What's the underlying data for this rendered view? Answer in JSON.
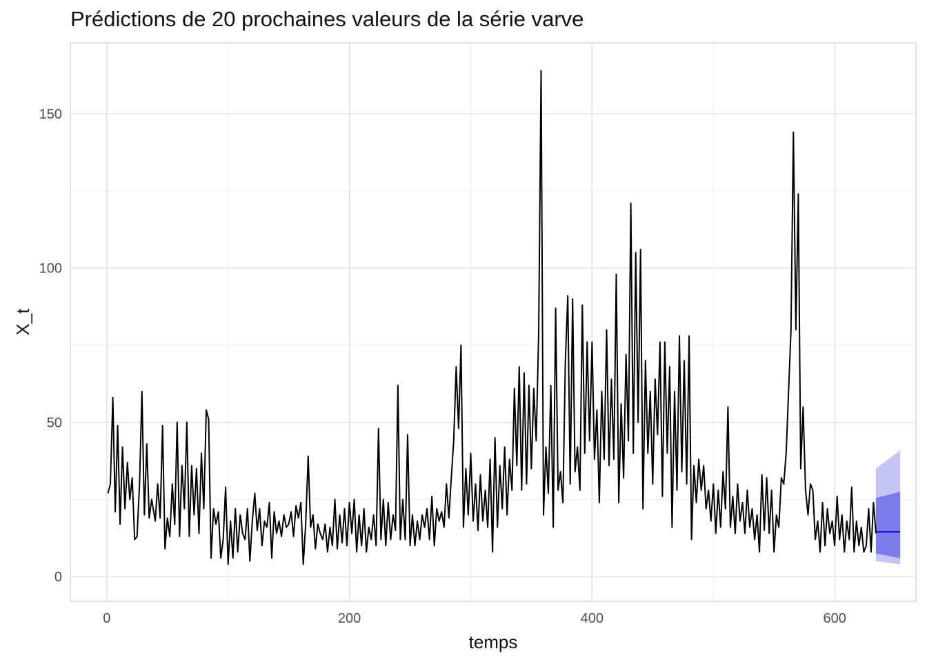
{
  "chart_data": {
    "type": "line",
    "title": "Prédictions de 20 prochaines valeurs de la série varve",
    "xlabel": "temps",
    "ylabel": "X_t",
    "xlim": [
      -30,
      667
    ],
    "ylim": [
      -8,
      173
    ],
    "x_ticks": [
      0,
      200,
      400,
      600
    ],
    "x_tick_labels": [
      "0",
      "200",
      "400",
      "600"
    ],
    "y_ticks": [
      0,
      50,
      100,
      150
    ],
    "y_tick_labels": [
      "0",
      "50",
      "100",
      "150"
    ],
    "grid": true,
    "series": [
      {
        "role": "observed",
        "color": "#000000",
        "points": [
          [
            1,
            27
          ],
          [
            3,
            30
          ],
          [
            5,
            58
          ],
          [
            7,
            21
          ],
          [
            9,
            49
          ],
          [
            11,
            17
          ],
          [
            13,
            42
          ],
          [
            15,
            22
          ],
          [
            17,
            37
          ],
          [
            19,
            25
          ],
          [
            21,
            32
          ],
          [
            23,
            12
          ],
          [
            25,
            13
          ],
          [
            27,
            30
          ],
          [
            29,
            60
          ],
          [
            31,
            20
          ],
          [
            33,
            43
          ],
          [
            35,
            19
          ],
          [
            37,
            25
          ],
          [
            40,
            18
          ],
          [
            42,
            30
          ],
          [
            44,
            19
          ],
          [
            46,
            49
          ],
          [
            48,
            9
          ],
          [
            50,
            19
          ],
          [
            52,
            13
          ],
          [
            54,
            30
          ],
          [
            56,
            17
          ],
          [
            58,
            50
          ],
          [
            60,
            13
          ],
          [
            62,
            36
          ],
          [
            64,
            22
          ],
          [
            66,
            50
          ],
          [
            68,
            13
          ],
          [
            70,
            36
          ],
          [
            72,
            20
          ],
          [
            74,
            35
          ],
          [
            76,
            14
          ],
          [
            78,
            40
          ],
          [
            80,
            22
          ],
          [
            82,
            54
          ],
          [
            84,
            51
          ],
          [
            86,
            6
          ],
          [
            88,
            22
          ],
          [
            90,
            17
          ],
          [
            92,
            21
          ],
          [
            94,
            6
          ],
          [
            96,
            12
          ],
          [
            98,
            29
          ],
          [
            100,
            4
          ],
          [
            102,
            18
          ],
          [
            104,
            6
          ],
          [
            106,
            22
          ],
          [
            108,
            8
          ],
          [
            110,
            20
          ],
          [
            112,
            14
          ],
          [
            114,
            12
          ],
          [
            116,
            22
          ],
          [
            118,
            5
          ],
          [
            120,
            18
          ],
          [
            122,
            27
          ],
          [
            124,
            15
          ],
          [
            126,
            22
          ],
          [
            128,
            10
          ],
          [
            130,
            18
          ],
          [
            132,
            16
          ],
          [
            134,
            24
          ],
          [
            136,
            6
          ],
          [
            138,
            21
          ],
          [
            140,
            14
          ],
          [
            142,
            18
          ],
          [
            144,
            13
          ],
          [
            146,
            20
          ],
          [
            148,
            16
          ],
          [
            150,
            17
          ],
          [
            152,
            21
          ],
          [
            154,
            13
          ],
          [
            156,
            23
          ],
          [
            158,
            19
          ],
          [
            160,
            24
          ],
          [
            162,
            4
          ],
          [
            164,
            17
          ],
          [
            166,
            39
          ],
          [
            168,
            16
          ],
          [
            170,
            20
          ],
          [
            172,
            9
          ],
          [
            174,
            17
          ],
          [
            176,
            14
          ],
          [
            178,
            12
          ],
          [
            180,
            17
          ],
          [
            182,
            8
          ],
          [
            184,
            16
          ],
          [
            186,
            10
          ],
          [
            188,
            25
          ],
          [
            190,
            9
          ],
          [
            192,
            20
          ],
          [
            194,
            11
          ],
          [
            196,
            22
          ],
          [
            198,
            10
          ],
          [
            200,
            24
          ],
          [
            202,
            14
          ],
          [
            204,
            25
          ],
          [
            206,
            8
          ],
          [
            208,
            20
          ],
          [
            210,
            10
          ],
          [
            212,
            22
          ],
          [
            214,
            8
          ],
          [
            216,
            16
          ],
          [
            218,
            12
          ],
          [
            220,
            20
          ],
          [
            222,
            10
          ],
          [
            224,
            48
          ],
          [
            226,
            12
          ],
          [
            228,
            25
          ],
          [
            230,
            10
          ],
          [
            232,
            24
          ],
          [
            234,
            12
          ],
          [
            236,
            20
          ],
          [
            238,
            15
          ],
          [
            240,
            62
          ],
          [
            242,
            12
          ],
          [
            244,
            25
          ],
          [
            246,
            12
          ],
          [
            248,
            46
          ],
          [
            250,
            10
          ],
          [
            252,
            20
          ],
          [
            254,
            10
          ],
          [
            256,
            18
          ],
          [
            258,
            12
          ],
          [
            260,
            20
          ],
          [
            262,
            16
          ],
          [
            264,
            22
          ],
          [
            266,
            12
          ],
          [
            268,
            26
          ],
          [
            270,
            10
          ],
          [
            272,
            22
          ],
          [
            274,
            18
          ],
          [
            276,
            21
          ],
          [
            278,
            16
          ],
          [
            280,
            30
          ],
          [
            282,
            19
          ],
          [
            284,
            32
          ],
          [
            286,
            44
          ],
          [
            288,
            68
          ],
          [
            290,
            48
          ],
          [
            292,
            75
          ],
          [
            294,
            16
          ],
          [
            296,
            35
          ],
          [
            298,
            20
          ],
          [
            300,
            40
          ],
          [
            302,
            18
          ],
          [
            304,
            30
          ],
          [
            306,
            15
          ],
          [
            308,
            33
          ],
          [
            310,
            18
          ],
          [
            312,
            28
          ],
          [
            314,
            16
          ],
          [
            316,
            38
          ],
          [
            318,
            8
          ],
          [
            320,
            45
          ],
          [
            322,
            16
          ],
          [
            324,
            36
          ],
          [
            326,
            22
          ],
          [
            328,
            42
          ],
          [
            330,
            20
          ],
          [
            332,
            38
          ],
          [
            334,
            28
          ],
          [
            336,
            61
          ],
          [
            338,
            36
          ],
          [
            340,
            68
          ],
          [
            342,
            28
          ],
          [
            344,
            66
          ],
          [
            346,
            30
          ],
          [
            348,
            62
          ],
          [
            350,
            35
          ],
          [
            352,
            61
          ],
          [
            354,
            44
          ],
          [
            356,
            79
          ],
          [
            358,
            164
          ],
          [
            360,
            20
          ],
          [
            362,
            42
          ],
          [
            364,
            27
          ],
          [
            366,
            62
          ],
          [
            368,
            16
          ],
          [
            370,
            87
          ],
          [
            372,
            28
          ],
          [
            374,
            34
          ],
          [
            376,
            24
          ],
          [
            378,
            70
          ],
          [
            380,
            91
          ],
          [
            382,
            30
          ],
          [
            384,
            90
          ],
          [
            386,
            34
          ],
          [
            388,
            42
          ],
          [
            390,
            28
          ],
          [
            392,
            88
          ],
          [
            394,
            40
          ],
          [
            396,
            76
          ],
          [
            398,
            44
          ],
          [
            400,
            76
          ],
          [
            402,
            38
          ],
          [
            404,
            54
          ],
          [
            406,
            24
          ],
          [
            408,
            60
          ],
          [
            410,
            38
          ],
          [
            412,
            80
          ],
          [
            414,
            36
          ],
          [
            416,
            64
          ],
          [
            418,
            38
          ],
          [
            420,
            98
          ],
          [
            422,
            24
          ],
          [
            424,
            56
          ],
          [
            426,
            32
          ],
          [
            428,
            72
          ],
          [
            430,
            44
          ],
          [
            432,
            121
          ],
          [
            434,
            40
          ],
          [
            436,
            105
          ],
          [
            438,
            50
          ],
          [
            440,
            106
          ],
          [
            442,
            22
          ],
          [
            444,
            70
          ],
          [
            446,
            40
          ],
          [
            448,
            60
          ],
          [
            450,
            30
          ],
          [
            452,
            64
          ],
          [
            454,
            46
          ],
          [
            456,
            76
          ],
          [
            458,
            26
          ],
          [
            460,
            76
          ],
          [
            462,
            40
          ],
          [
            464,
            68
          ],
          [
            466,
            16
          ],
          [
            468,
            60
          ],
          [
            470,
            28
          ],
          [
            472,
            78
          ],
          [
            474,
            34
          ],
          [
            476,
            70
          ],
          [
            478,
            30
          ],
          [
            480,
            78
          ],
          [
            482,
            12
          ],
          [
            484,
            36
          ],
          [
            486,
            24
          ],
          [
            488,
            38
          ],
          [
            490,
            28
          ],
          [
            492,
            36
          ],
          [
            494,
            22
          ],
          [
            496,
            28
          ],
          [
            498,
            18
          ],
          [
            500,
            30
          ],
          [
            502,
            14
          ],
          [
            504,
            28
          ],
          [
            506,
            16
          ],
          [
            508,
            34
          ],
          [
            510,
            22
          ],
          [
            512,
            55
          ],
          [
            514,
            16
          ],
          [
            516,
            26
          ],
          [
            518,
            14
          ],
          [
            520,
            30
          ],
          [
            522,
            18
          ],
          [
            524,
            24
          ],
          [
            526,
            14
          ],
          [
            528,
            28
          ],
          [
            530,
            16
          ],
          [
            532,
            22
          ],
          [
            534,
            12
          ],
          [
            536,
            20
          ],
          [
            538,
            8
          ],
          [
            540,
            33
          ],
          [
            542,
            15
          ],
          [
            544,
            32
          ],
          [
            546,
            14
          ],
          [
            548,
            28
          ],
          [
            550,
            8
          ],
          [
            552,
            20
          ],
          [
            554,
            16
          ],
          [
            556,
            32
          ],
          [
            558,
            30
          ],
          [
            560,
            40
          ],
          [
            562,
            60
          ],
          [
            564,
            80
          ],
          [
            566,
            144
          ],
          [
            568,
            80
          ],
          [
            570,
            124
          ],
          [
            572,
            35
          ],
          [
            574,
            55
          ],
          [
            576,
            28
          ],
          [
            578,
            20
          ],
          [
            580,
            30
          ],
          [
            582,
            28
          ],
          [
            584,
            12
          ],
          [
            586,
            18
          ],
          [
            588,
            8
          ],
          [
            590,
            24
          ],
          [
            592,
            10
          ],
          [
            594,
            22
          ],
          [
            596,
            14
          ],
          [
            598,
            18
          ],
          [
            600,
            10
          ],
          [
            602,
            26
          ],
          [
            604,
            12
          ],
          [
            606,
            20
          ],
          [
            608,
            8
          ],
          [
            610,
            18
          ],
          [
            612,
            12
          ],
          [
            614,
            29
          ],
          [
            616,
            8
          ],
          [
            618,
            18
          ],
          [
            620,
            10
          ],
          [
            622,
            16
          ],
          [
            624,
            8
          ],
          [
            626,
            10
          ],
          [
            628,
            22
          ],
          [
            630,
            8
          ],
          [
            632,
            24
          ],
          [
            634,
            14
          ]
        ]
      },
      {
        "role": "forecast",
        "color": "#0000cc",
        "x": [
          634,
          654
        ],
        "mean": [
          14.5,
          14.5
        ],
        "pi80_color": "#7b7bee",
        "pi80_lower": [
          7.5,
          6.0
        ],
        "pi80_upper": [
          25.5,
          27.5
        ],
        "pi95_color": "#c5c5f5",
        "pi95_lower": [
          5,
          4
        ],
        "pi95_upper": [
          35,
          41
        ]
      }
    ]
  }
}
